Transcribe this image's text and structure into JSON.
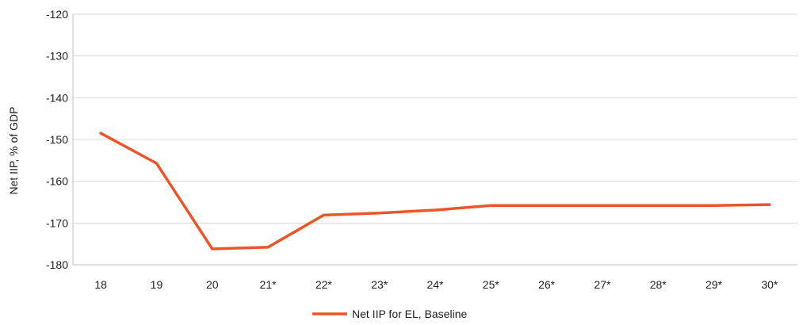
{
  "chart_data": {
    "type": "line",
    "title": "",
    "xlabel": "",
    "ylabel": "Net IIP, % of GDP",
    "categories": [
      "18",
      "19",
      "20",
      "21*",
      "22*",
      "23*",
      "24*",
      "25*",
      "26*",
      "27*",
      "28*",
      "29*",
      "30*"
    ],
    "ylim": [
      -180,
      -120
    ],
    "yticks": [
      -120,
      -130,
      -140,
      -150,
      -160,
      -170,
      -180
    ],
    "grid": true,
    "legend_position": "bottom",
    "series": [
      {
        "name": "Net IIP for EL, Baseline",
        "color": "#E8572A",
        "values": [
          -148.5,
          -155.7,
          -176.2,
          -175.8,
          -168.1,
          -167.6,
          -166.9,
          -165.8,
          -165.8,
          -165.8,
          -165.8,
          -165.8,
          -165.6
        ]
      }
    ]
  }
}
